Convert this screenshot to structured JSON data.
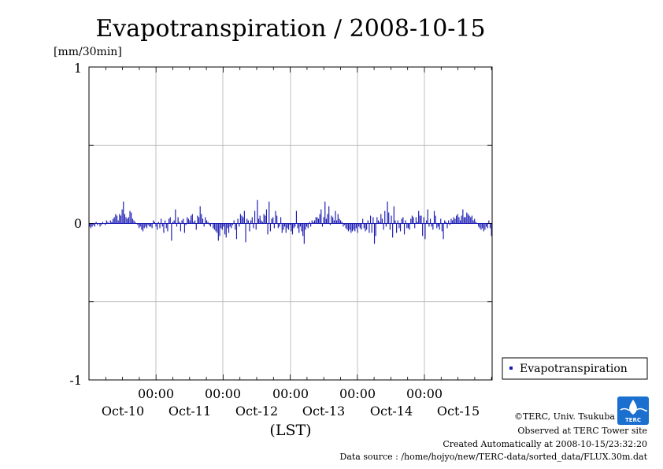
{
  "chart_data": {
    "type": "bar",
    "title": "Evapotranspiration / 2008-10-15",
    "ylabel": "[mm/30min]",
    "xlabel": "(LST)",
    "ylim": [
      -1,
      1
    ],
    "y_ticks": [
      "1",
      "0",
      "-1"
    ],
    "x_time_ticks": [
      "00:00",
      "00:00",
      "00:00",
      "00:00",
      "00:00"
    ],
    "x_date_ticks": [
      "Oct-10",
      "Oct-11",
      "Oct-12",
      "Oct-13",
      "Oct-14",
      "Oct-15"
    ],
    "legend": {
      "position": "right",
      "entries": [
        "Evapotranspiration"
      ]
    },
    "grid": true,
    "bar_color": "#1a1ab4",
    "series": [
      {
        "name": "Evapotranspiration",
        "interval": "30min",
        "values": [
          -0.02,
          -0.03,
          -0.02,
          -0.01,
          -0.02,
          0.01,
          -0.01,
          0.0,
          -0.02,
          -0.01,
          0.01,
          0.0,
          -0.01,
          0.02,
          0.01,
          0.0,
          0.02,
          0.01,
          0.03,
          0.04,
          0.06,
          0.05,
          0.02,
          0.06,
          0.05,
          0.09,
          0.14,
          0.06,
          0.04,
          0.03,
          0.04,
          0.08,
          0.07,
          0.03,
          0.02,
          0.01,
          0.0,
          -0.01,
          -0.03,
          -0.02,
          -0.04,
          -0.05,
          -0.03,
          -0.02,
          -0.03,
          -0.01,
          -0.02,
          -0.02,
          -0.03,
          0.02,
          0.01,
          -0.02,
          -0.04,
          0.01,
          -0.03,
          0.03,
          -0.02,
          -0.06,
          0.02,
          -0.03,
          -0.05,
          0.03,
          0.04,
          -0.11,
          0.01,
          0.02,
          0.09,
          -0.02,
          0.04,
          0.01,
          -0.05,
          0.02,
          0.03,
          -0.06,
          -0.01,
          0.04,
          0.03,
          0.02,
          0.05,
          0.06,
          0.01,
          0.02,
          -0.04,
          0.05,
          0.04,
          0.11,
          0.06,
          0.03,
          -0.02,
          0.04,
          0.02,
          0.01,
          -0.01,
          -0.02,
          0.0,
          -0.03,
          -0.04,
          -0.05,
          -0.06,
          -0.11,
          -0.08,
          -0.03,
          -0.04,
          -0.02,
          -0.07,
          -0.09,
          -0.03,
          -0.06,
          -0.02,
          -0.03,
          -0.01,
          0.02,
          -0.04,
          -0.1,
          0.03,
          -0.02,
          0.06,
          0.05,
          0.04,
          0.08,
          -0.12,
          0.03,
          0.02,
          -0.05,
          0.02,
          0.04,
          -0.03,
          0.08,
          -0.04,
          0.15,
          0.03,
          0.05,
          0.02,
          0.01,
          0.06,
          0.05,
          0.09,
          -0.07,
          0.14,
          -0.05,
          0.03,
          0.04,
          -0.03,
          0.08,
          0.05,
          -0.03,
          -0.02,
          0.04,
          -0.06,
          -0.04,
          -0.02,
          -0.06,
          -0.03,
          -0.04,
          -0.01,
          -0.05,
          -0.07,
          -0.03,
          -0.02,
          0.08,
          -0.03,
          -0.06,
          -0.02,
          -0.05,
          -0.08,
          -0.13,
          -0.04,
          -0.02,
          -0.03,
          0.01,
          -0.02,
          0.02,
          0.01,
          0.02,
          0.04,
          0.04,
          0.03,
          0.06,
          0.09,
          -0.02,
          0.04,
          0.14,
          0.03,
          0.06,
          0.11,
          -0.01,
          0.05,
          0.04,
          0.02,
          0.08,
          0.02,
          0.06,
          0.03,
          0.02,
          0.01,
          -0.02,
          -0.01,
          -0.03,
          -0.04,
          -0.05,
          -0.04,
          -0.06,
          -0.05,
          -0.04,
          -0.05,
          -0.03,
          -0.06,
          -0.02,
          -0.03,
          -0.04,
          0.03,
          -0.03,
          -0.05,
          -0.04,
          0.02,
          -0.06,
          0.05,
          -0.06,
          0.04,
          -0.13,
          -0.08,
          0.04,
          0.02,
          0.01,
          0.06,
          0.03,
          -0.04,
          0.08,
          -0.02,
          0.14,
          0.07,
          -0.04,
          0.05,
          -0.09,
          0.11,
          0.02,
          -0.06,
          0.02,
          -0.03,
          -0.05,
          0.03,
          0.04,
          -0.07,
          0.02,
          -0.03,
          -0.03,
          -0.04,
          0.03,
          0.05,
          0.04,
          -0.03,
          0.04,
          0.01,
          0.08,
          0.05,
          0.05,
          -0.08,
          0.04,
          -0.1,
          0.02,
          0.09,
          -0.02,
          0.03,
          -0.02,
          -0.04,
          0.08,
          0.05,
          -0.03,
          -0.02,
          -0.04,
          0.03,
          -0.05,
          -0.1,
          0.02,
          0.01,
          -0.03,
          0.02,
          -0.01,
          0.03,
          0.02,
          0.04,
          0.03,
          0.05,
          0.06,
          0.04,
          0.02,
          0.05,
          0.09,
          0.04,
          0.04,
          0.07,
          0.06,
          0.05,
          0.04,
          0.05,
          0.02,
          0.03,
          0.01,
          0.0,
          -0.02,
          -0.03,
          -0.04,
          -0.03,
          -0.05,
          -0.04,
          -0.02,
          -0.03,
          0.02,
          -0.03,
          -0.08
        ]
      }
    ]
  },
  "footer": {
    "copyright": "©TERC, Univ. Tsukuba",
    "observed": "Observed at TERC Tower site",
    "created": "Created Automatically at 2008-10-15/23:32:20",
    "source": "Data source : /home/hojyo/new/TERC-data/sorted_data/FLUX.30m.dat"
  },
  "logo": {
    "text": "TERC",
    "color": "#1a6fcf"
  }
}
